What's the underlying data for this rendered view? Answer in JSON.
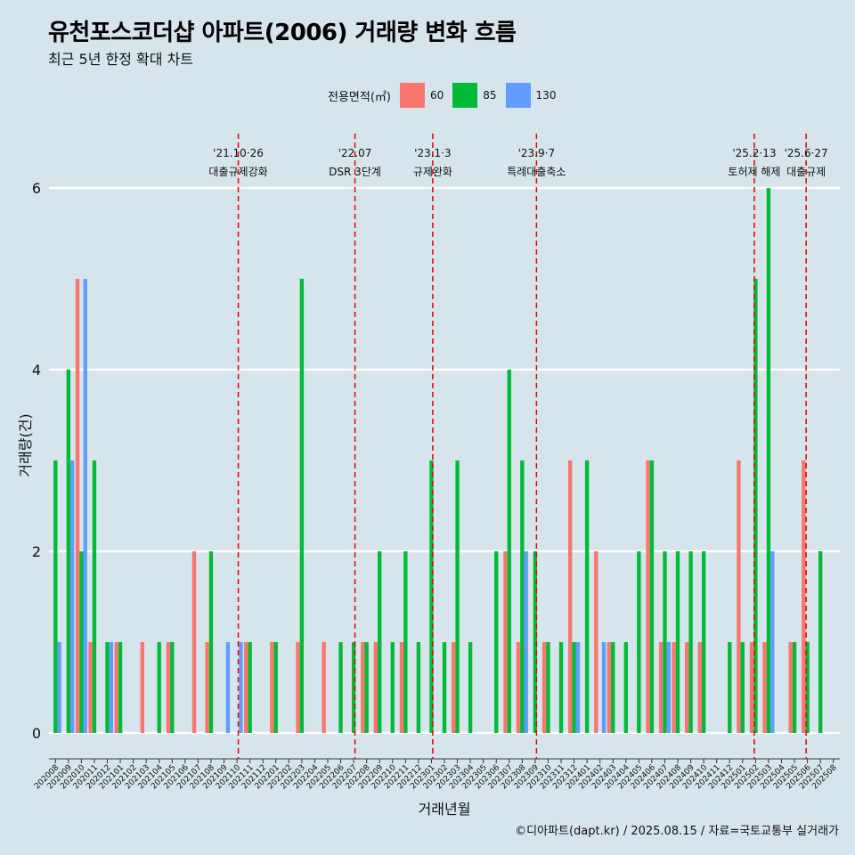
{
  "title": "유천포스코더샵 아파트(2006) 거래량 변화 흐름",
  "subtitle": "최근 5년 한정 확대 차트",
  "caption": "©디아파트(dapt.kr) / 2025.08.15 / 자료=국토교통부 실거래가",
  "legend": {
    "title": "전용면적(㎡)",
    "items": [
      {
        "label": "60",
        "color": "#f8766d"
      },
      {
        "label": "85",
        "color": "#00ba38"
      },
      {
        "label": "130",
        "color": "#619cff"
      }
    ]
  },
  "chart_data": {
    "type": "bar",
    "xlabel": "거래년월",
    "ylabel": "거래량(건)",
    "ylim": [
      0,
      6
    ],
    "yticks": [
      0,
      2,
      4,
      6
    ],
    "grid": true,
    "categories": [
      "202008",
      "202009",
      "202010",
      "202011",
      "202012",
      "202101",
      "202102",
      "202103",
      "202104",
      "202105",
      "202106",
      "202107",
      "202108",
      "202109",
      "202110",
      "202111",
      "202112",
      "202201",
      "202202",
      "202203",
      "202204",
      "202205",
      "202206",
      "202207",
      "202208",
      "202209",
      "202210",
      "202211",
      "202212",
      "202301",
      "202302",
      "202303",
      "202304",
      "202305",
      "202306",
      "202307",
      "202308",
      "202309",
      "202310",
      "202311",
      "202312",
      "202401",
      "202402",
      "202403",
      "202404",
      "202405",
      "202406",
      "202407",
      "202408",
      "202409",
      "202410",
      "202411",
      "202412",
      "202501",
      "202502",
      "202503",
      "202504",
      "202505",
      "202506",
      "202507",
      "202508"
    ],
    "series": [
      {
        "name": "60",
        "color": "#f8766d",
        "values": [
          0,
          0,
          5,
          1,
          0,
          1,
          0,
          1,
          0,
          1,
          0,
          2,
          1,
          0,
          0,
          1,
          0,
          1,
          0,
          1,
          0,
          1,
          0,
          0,
          1,
          1,
          0,
          1,
          0,
          0,
          0,
          1,
          0,
          0,
          0,
          2,
          1,
          0,
          1,
          0,
          3,
          0,
          2,
          1,
          0,
          0,
          3,
          1,
          1,
          1,
          1,
          0,
          0,
          3,
          1,
          1,
          0,
          1,
          3,
          0,
          0
        ]
      },
      {
        "name": "85",
        "color": "#00ba38",
        "values": [
          3,
          4,
          2,
          3,
          1,
          1,
          0,
          0,
          1,
          1,
          0,
          0,
          2,
          0,
          0,
          1,
          0,
          1,
          0,
          5,
          0,
          0,
          1,
          1,
          1,
          2,
          1,
          2,
          1,
          3,
          1,
          3,
          1,
          0,
          2,
          4,
          3,
          2,
          1,
          1,
          1,
          3,
          0,
          1,
          1,
          2,
          3,
          2,
          2,
          2,
          2,
          0,
          1,
          1,
          5,
          6,
          0,
          1,
          1,
          2,
          0
        ]
      },
      {
        "name": "130",
        "color": "#619cff",
        "values": [
          1,
          3,
          5,
          0,
          1,
          0,
          0,
          0,
          0,
          0,
          0,
          0,
          0,
          1,
          1,
          0,
          0,
          0,
          0,
          0,
          0,
          0,
          0,
          0,
          0,
          0,
          0,
          0,
          0,
          0,
          0,
          0,
          0,
          0,
          0,
          0,
          2,
          0,
          0,
          0,
          1,
          0,
          1,
          0,
          0,
          0,
          0,
          1,
          0,
          0,
          0,
          0,
          0,
          0,
          0,
          2,
          0,
          0,
          0,
          0,
          0
        ]
      }
    ],
    "annotations": [
      {
        "date": "'21.10·26",
        "label": "대출규제강화",
        "index": 14.1
      },
      {
        "date": "'22.07",
        "label": "DSR 3단계",
        "index": 23.1
      },
      {
        "date": "'23.1·3",
        "label": "규제완화",
        "index": 29.1
      },
      {
        "date": "'23.9·7",
        "label": "특례대출축소",
        "index": 37.1
      },
      {
        "date": "'25.2·13",
        "label": "토허제 해제",
        "index": 53.9
      },
      {
        "date": "'25.6·27",
        "label": "대출규제",
        "index": 57.9
      }
    ]
  }
}
